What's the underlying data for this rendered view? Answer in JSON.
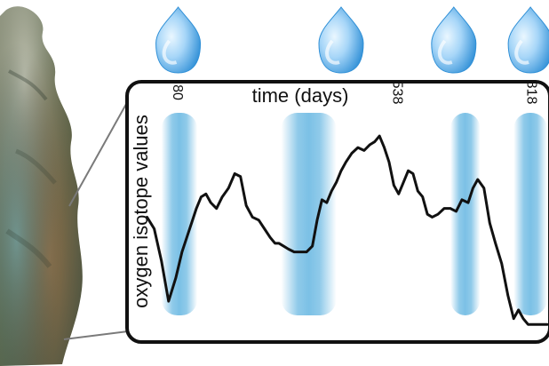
{
  "figure": {
    "x_axis_label": "time (days)",
    "y_axis_label": "oxygen isotope values",
    "tick_labels": [
      "80",
      "538",
      "818"
    ]
  },
  "icons": {
    "raindrop_icon": "raindrop-icon",
    "fossil_specimen": "fossil-tooth-image"
  },
  "colors": {
    "line": "#111111",
    "wet_band": "#2a9ad6",
    "drop_light": "#cfe9fb",
    "drop_dark": "#2f8fd6",
    "frame": "#111111"
  },
  "chart_data": {
    "type": "line",
    "xlabel": "time (days)",
    "ylabel": "oxygen isotope values",
    "x_ticks": [
      80,
      538,
      818
    ],
    "wet_season_bands": [
      {
        "start": 55,
        "end": 130
      },
      {
        "start": 305,
        "end": 420
      },
      {
        "start": 658,
        "end": 720
      },
      {
        "start": 790,
        "end": 860
      }
    ],
    "raindrops_at": [
      90,
      430,
      665,
      825
    ],
    "y_unit_note": "",
    "x": [
      25,
      40,
      55,
      70,
      85,
      98,
      108,
      118,
      128,
      138,
      148,
      158,
      170,
      182,
      195,
      208,
      220,
      232,
      245,
      258,
      270,
      282,
      292,
      300,
      310,
      320,
      332,
      345,
      358,
      370,
      380,
      390,
      400,
      410,
      420,
      430,
      440,
      452,
      465,
      478,
      490,
      500,
      510,
      520,
      530,
      540,
      550,
      560,
      570,
      580,
      590,
      600,
      610,
      620,
      632,
      645,
      658,
      670,
      682,
      695,
      705,
      715,
      728,
      740,
      752,
      765,
      778,
      790,
      800,
      810,
      820,
      830,
      845,
      860
    ],
    "y": [
      -3.4,
      -3.8,
      -4.9,
      -6.3,
      -5.5,
      -4.6,
      -4.1,
      -3.6,
      -3.1,
      -2.7,
      -2.6,
      -2.9,
      -3.1,
      -2.7,
      -2.4,
      -1.9,
      -2.0,
      -3.0,
      -3.4,
      -3.5,
      -3.8,
      -4.1,
      -4.3,
      -4.3,
      -4.4,
      -4.5,
      -4.6,
      -4.6,
      -4.6,
      -4.4,
      -3.5,
      -2.8,
      -2.9,
      -2.5,
      -2.2,
      -1.8,
      -1.5,
      -1.2,
      -1.0,
      -1.1,
      -0.9,
      -0.8,
      -0.6,
      -1.0,
      -1.5,
      -2.3,
      -2.6,
      -2.2,
      -1.8,
      -1.9,
      -2.5,
      -2.7,
      -3.3,
      -3.4,
      -3.3,
      -3.1,
      -3.1,
      -3.2,
      -2.8,
      -2.9,
      -2.4,
      -2.1,
      -2.4,
      -3.6,
      -4.3,
      -5.0,
      -6.1,
      -6.9,
      -6.6,
      -6.9,
      -7.1,
      -7.1,
      -7.1,
      -7.1
    ],
    "grid": false,
    "legend": "none"
  }
}
